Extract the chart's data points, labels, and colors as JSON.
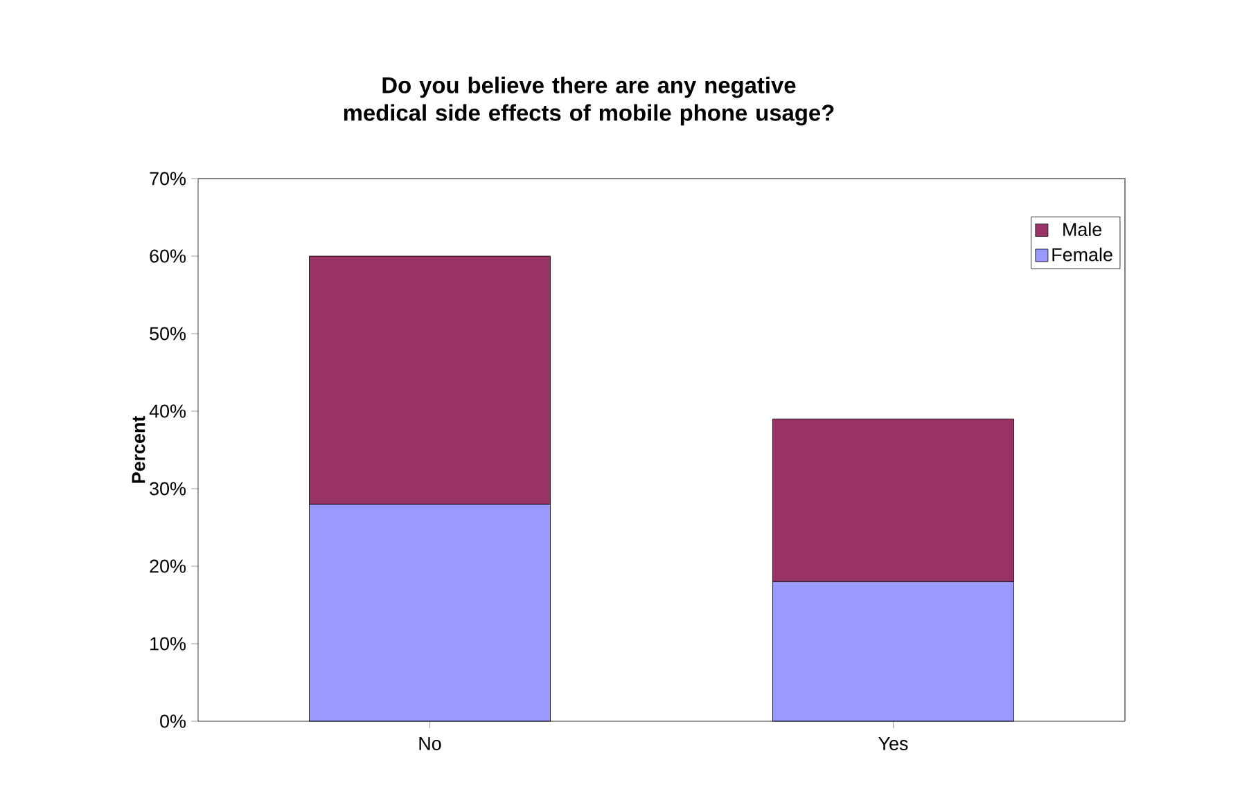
{
  "chart_data": {
    "type": "bar",
    "title": "Do you believe there are any negative medical side effects of mobile phone usage?",
    "ylabel": "Percent",
    "categories": [
      "No",
      "Yes"
    ],
    "stacked": true,
    "series": [
      {
        "name": "Female",
        "color": "#9999ff",
        "values": [
          28,
          18
        ]
      },
      {
        "name": "Male",
        "color": "#993366",
        "values": [
          32,
          21
        ]
      }
    ],
    "ylim": [
      0,
      70
    ],
    "yticks": [
      {
        "value": 0,
        "label": "0%"
      },
      {
        "value": 10,
        "label": "10%"
      },
      {
        "value": 20,
        "label": "20%"
      },
      {
        "value": 30,
        "label": "30%"
      },
      {
        "value": 40,
        "label": "40%"
      },
      {
        "value": 50,
        "label": "50%"
      },
      {
        "value": 60,
        "label": "60%"
      },
      {
        "value": 70,
        "label": "70%"
      }
    ],
    "legend": "top right",
    "grid": false
  }
}
